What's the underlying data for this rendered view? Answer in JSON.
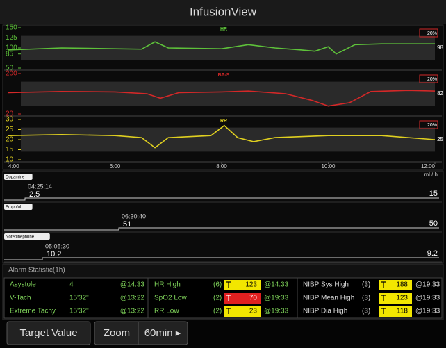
{
  "header": {
    "title": "InfusionView"
  },
  "trends": {
    "x_ticks": [
      {
        "value": 4,
        "label": "4:00"
      },
      {
        "value": 6,
        "label": "6:00"
      },
      {
        "value": 8,
        "label": "8:00"
      },
      {
        "value": 10,
        "label": "10:00"
      },
      {
        "value": 12,
        "label": "12:00"
      }
    ],
    "xlim": [
      4,
      12
    ],
    "panels": [
      {
        "name": "HR",
        "color": "#5ec23a",
        "ylim": [
          50,
          150
        ],
        "yticks": [
          150,
          125,
          100,
          85,
          50
        ],
        "current": "98",
        "alarm": "20%",
        "x": [
          4,
          5,
          6,
          6.5,
          6.75,
          7,
          8,
          8.5,
          9,
          9.5,
          9.75,
          10,
          10.15,
          10.5,
          11,
          12
        ],
        "values": [
          95,
          100,
          98,
          97,
          115,
          100,
          98,
          108,
          100,
          95,
          92,
          103,
          85,
          108,
          110,
          110
        ]
      },
      {
        "name": "BP-S",
        "color": "#d42828",
        "ylim": [
          20,
          200
        ],
        "yticks": [
          200,
          20
        ],
        "current": "82",
        "alarm": "20%",
        "x": [
          4,
          5,
          6,
          6.6,
          6.85,
          7.2,
          8,
          8.5,
          9.2,
          9.7,
          10,
          10.4,
          10.8,
          11.5,
          12
        ],
        "values": [
          115,
          120,
          118,
          110,
          90,
          115,
          118,
          122,
          110,
          80,
          55,
          70,
          120,
          125,
          122
        ]
      },
      {
        "name": "RR",
        "color": "#e0d020",
        "ylim": [
          10,
          30
        ],
        "yticks": [
          30,
          25,
          20,
          15,
          10
        ],
        "current": "25",
        "alarm": "20%",
        "x": [
          4,
          5,
          6,
          6.5,
          6.75,
          7,
          7.8,
          8.05,
          8.3,
          8.6,
          9,
          10,
          11,
          12
        ],
        "values": [
          22,
          22.5,
          22,
          21,
          16,
          21,
          22,
          27,
          21,
          19,
          21,
          22,
          22,
          20
        ]
      }
    ]
  },
  "infusion": {
    "unit": "ml / h",
    "drugs": [
      {
        "name": "Dopamine",
        "time": "04:25:14",
        "start": "2.5",
        "end": "15"
      },
      {
        "name": "Propofol",
        "time": "06:30:40",
        "start": "51",
        "end": "50"
      },
      {
        "name": "Norepinephrine",
        "time": "05:05:30",
        "start": "10.2",
        "end": "9.2"
      }
    ]
  },
  "alarms": {
    "title": "Alarm Statistic(1h)",
    "events": [
      [
        "Asystole",
        "4'",
        "@14:33"
      ],
      [
        "V-Tach",
        "15'32\"",
        "@13:22"
      ],
      [
        "Extreme Tachy",
        "15'32\"",
        "@13:22"
      ]
    ],
    "physio": [
      [
        "HR  High",
        "(6)",
        "123",
        "@14:33"
      ],
      [
        "SpO2 Low",
        "(2)",
        "70",
        "@19:33"
      ],
      [
        "RR Low",
        "(2)",
        "23",
        "@19:33"
      ]
    ],
    "nibp": [
      [
        "NIBP Sys High",
        "(3)",
        "188",
        "@19:33"
      ],
      [
        "NIBP Mean High",
        "(3)",
        "123",
        "@19:33"
      ],
      [
        "NIBP Dia High",
        "(3)",
        "118",
        "@19:33"
      ]
    ]
  },
  "buttons": {
    "target": "Target Value",
    "zoom": "Zoom",
    "range": "60min ▸"
  }
}
